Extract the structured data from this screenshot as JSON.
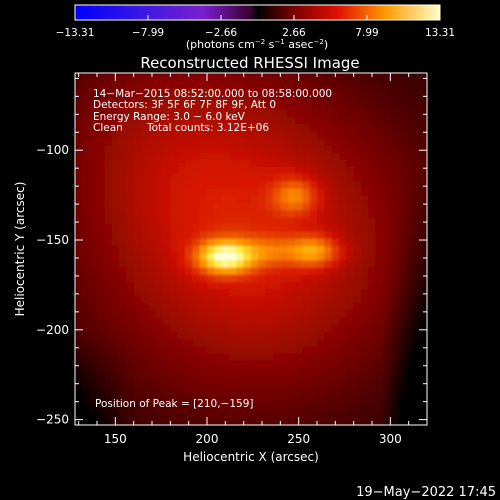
{
  "colorbar": {
    "ticks": [
      "−13.31",
      "−7.99",
      "−2.66",
      "2.66",
      "7.99",
      "13.31"
    ],
    "min": -13.31,
    "max": 13.31,
    "unit_label": "(photons cm",
    "unit_exp1": "−2",
    "unit_mid": " s",
    "unit_exp2": "−1",
    "unit_mid2": " asec",
    "unit_exp3": "−2",
    "unit_end": ")"
  },
  "chart_data": {
    "type": "heatmap",
    "title": "Reconstructed RHESSI Image",
    "xlabel": "Heliocentric X (arcsec)",
    "ylabel": "Heliocentric Y (arcsec)",
    "xlim": [
      128,
      320
    ],
    "ylim": [
      -253,
      -57
    ],
    "xticks": [
      150,
      200,
      250,
      300
    ],
    "yticks": [
      -100,
      -150,
      -200,
      -250
    ],
    "xtick_labels": [
      "150",
      "200",
      "250",
      "300"
    ],
    "ytick_labels": [
      "−100",
      "−150",
      "−200",
      "−250"
    ],
    "sources": [
      {
        "x": 210,
        "y": -159,
        "peak": 13.31
      },
      {
        "x": 258,
        "y": -156,
        "peak": 9.0
      },
      {
        "x": 248,
        "y": -125,
        "peak": 3.5
      }
    ],
    "annotations": {
      "line1": "14−Mar−2015 08:52:00.000 to 08:58:00.000",
      "line2": "Detectors: 3F 5F 6F 7F 8F 9F, Att 0",
      "line3": "Energy Range: 3.0 − 6.0 keV",
      "line4_left": "Clean",
      "line4_right": "Total counts: 3.12E+06",
      "peak": "Position of Peak = [210,−159]"
    }
  },
  "footer": {
    "date": "19−May−2022 17:45"
  }
}
